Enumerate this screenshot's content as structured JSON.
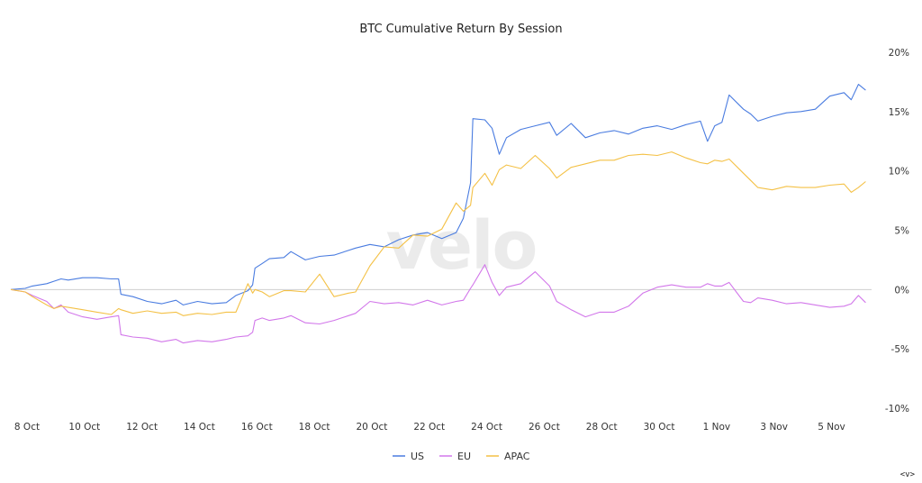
{
  "chart_data": {
    "type": "line",
    "title": "BTC Cumulative Return By Session",
    "watermark": "velo",
    "corner_mark": "<v>",
    "y_axis": {
      "position": "right",
      "ylim": [
        -10,
        20
      ],
      "ticks": [
        20,
        15,
        10,
        5,
        0,
        -5,
        -10
      ],
      "tick_labels": [
        "20%",
        "15%",
        "10%",
        "5%",
        "0%",
        "-5%",
        "-10%"
      ]
    },
    "x_axis": {
      "xlim": [
        "2023-10-08",
        "2023-11-06T23:00"
      ],
      "ticks": [
        "2023-10-08",
        "2023-10-10",
        "2023-10-12",
        "2023-10-14",
        "2023-10-16",
        "2023-10-18",
        "2023-10-20",
        "2023-10-22",
        "2023-10-24",
        "2023-10-26",
        "2023-10-28",
        "2023-10-30",
        "2023-11-01",
        "2023-11-03",
        "2023-11-05"
      ],
      "tick_labels": [
        "8 Oct",
        "10 Oct",
        "12 Oct",
        "14 Oct",
        "16 Oct",
        "18 Oct",
        "20 Oct",
        "22 Oct",
        "24 Oct",
        "26 Oct",
        "28 Oct",
        "30 Oct",
        "1 Nov",
        "3 Nov",
        "5 Nov"
      ]
    },
    "grid": false,
    "zero_line": true,
    "legend_position": "bottom-center",
    "series": [
      {
        "name": "US",
        "color": "#4a7ce0",
        "points": [
          [
            "2023-10-08T00:00",
            0.0
          ],
          [
            "2023-10-08T12:00",
            0.1
          ],
          [
            "2023-10-08T18:00",
            0.3
          ],
          [
            "2023-10-09T06:00",
            0.5
          ],
          [
            "2023-10-09T12:00",
            0.7
          ],
          [
            "2023-10-09T18:00",
            0.9
          ],
          [
            "2023-10-10T00:00",
            0.8
          ],
          [
            "2023-10-10T12:00",
            1.0
          ],
          [
            "2023-10-11T00:00",
            1.0
          ],
          [
            "2023-10-11T12:00",
            0.9
          ],
          [
            "2023-10-11T18:00",
            0.9
          ],
          [
            "2023-10-11T20:00",
            -0.4
          ],
          [
            "2023-10-12T06:00",
            -0.6
          ],
          [
            "2023-10-12T18:00",
            -1.0
          ],
          [
            "2023-10-13T06:00",
            -1.2
          ],
          [
            "2023-10-13T18:00",
            -0.9
          ],
          [
            "2023-10-14T00:00",
            -1.3
          ],
          [
            "2023-10-14T12:00",
            -1.0
          ],
          [
            "2023-10-15T00:00",
            -1.2
          ],
          [
            "2023-10-15T12:00",
            -1.1
          ],
          [
            "2023-10-15T20:00",
            -0.5
          ],
          [
            "2023-10-16T06:00",
            -0.1
          ],
          [
            "2023-10-16T10:00",
            0.4
          ],
          [
            "2023-10-16T12:00",
            1.8
          ],
          [
            "2023-10-16T18:00",
            2.2
          ],
          [
            "2023-10-17T00:00",
            2.6
          ],
          [
            "2023-10-17T12:00",
            2.7
          ],
          [
            "2023-10-17T18:00",
            3.2
          ],
          [
            "2023-10-18T06:00",
            2.5
          ],
          [
            "2023-10-18T18:00",
            2.8
          ],
          [
            "2023-10-19T06:00",
            2.9
          ],
          [
            "2023-10-19T18:00",
            3.3
          ],
          [
            "2023-10-20T00:00",
            3.5
          ],
          [
            "2023-10-20T12:00",
            3.8
          ],
          [
            "2023-10-21T00:00",
            3.6
          ],
          [
            "2023-10-21T12:00",
            4.2
          ],
          [
            "2023-10-22T00:00",
            4.6
          ],
          [
            "2023-10-22T12:00",
            4.8
          ],
          [
            "2023-10-23T00:00",
            4.3
          ],
          [
            "2023-10-23T12:00",
            4.8
          ],
          [
            "2023-10-23T18:00",
            6.0
          ],
          [
            "2023-10-24T00:00",
            9.0
          ],
          [
            "2023-10-24T02:00",
            14.4
          ],
          [
            "2023-10-24T12:00",
            14.3
          ],
          [
            "2023-10-24T18:00",
            13.6
          ],
          [
            "2023-10-25T00:00",
            11.4
          ],
          [
            "2023-10-25T06:00",
            12.8
          ],
          [
            "2023-10-25T18:00",
            13.5
          ],
          [
            "2023-10-26T06:00",
            13.8
          ],
          [
            "2023-10-26T18:00",
            14.1
          ],
          [
            "2023-10-27T00:00",
            13.0
          ],
          [
            "2023-10-27T12:00",
            14.0
          ],
          [
            "2023-10-28T00:00",
            12.8
          ],
          [
            "2023-10-28T12:00",
            13.2
          ],
          [
            "2023-10-29T00:00",
            13.4
          ],
          [
            "2023-10-29T12:00",
            13.1
          ],
          [
            "2023-10-30T00:00",
            13.6
          ],
          [
            "2023-10-30T12:00",
            13.8
          ],
          [
            "2023-10-31T00:00",
            13.5
          ],
          [
            "2023-10-31T12:00",
            13.9
          ],
          [
            "2023-11-01T00:00",
            14.2
          ],
          [
            "2023-11-01T06:00",
            12.5
          ],
          [
            "2023-11-01T12:00",
            13.8
          ],
          [
            "2023-11-01T18:00",
            14.1
          ],
          [
            "2023-11-02T00:00",
            16.4
          ],
          [
            "2023-11-02T12:00",
            15.2
          ],
          [
            "2023-11-02T18:00",
            14.8
          ],
          [
            "2023-11-03T00:00",
            14.2
          ],
          [
            "2023-11-03T12:00",
            14.6
          ],
          [
            "2023-11-04T00:00",
            14.9
          ],
          [
            "2023-11-04T12:00",
            15.0
          ],
          [
            "2023-11-05T00:00",
            15.2
          ],
          [
            "2023-11-05T12:00",
            16.3
          ],
          [
            "2023-11-06T00:00",
            16.6
          ],
          [
            "2023-11-06T06:00",
            16.0
          ],
          [
            "2023-11-06T12:00",
            17.3
          ],
          [
            "2023-11-06T18:00",
            16.8
          ]
        ]
      },
      {
        "name": "EU",
        "color": "#d277ea",
        "points": [
          [
            "2023-10-08T00:00",
            0.0
          ],
          [
            "2023-10-08T12:00",
            -0.2
          ],
          [
            "2023-10-08T18:00",
            -0.5
          ],
          [
            "2023-10-09T06:00",
            -1.0
          ],
          [
            "2023-10-09T12:00",
            -1.6
          ],
          [
            "2023-10-09T18:00",
            -1.3
          ],
          [
            "2023-10-10T00:00",
            -1.9
          ],
          [
            "2023-10-10T12:00",
            -2.3
          ],
          [
            "2023-10-11T00:00",
            -2.5
          ],
          [
            "2023-10-11T12:00",
            -2.3
          ],
          [
            "2023-10-11T18:00",
            -2.2
          ],
          [
            "2023-10-11T20:00",
            -3.8
          ],
          [
            "2023-10-12T06:00",
            -4.0
          ],
          [
            "2023-10-12T18:00",
            -4.1
          ],
          [
            "2023-10-13T06:00",
            -4.4
          ],
          [
            "2023-10-13T18:00",
            -4.2
          ],
          [
            "2023-10-14T00:00",
            -4.5
          ],
          [
            "2023-10-14T12:00",
            -4.3
          ],
          [
            "2023-10-15T00:00",
            -4.4
          ],
          [
            "2023-10-15T12:00",
            -4.2
          ],
          [
            "2023-10-15T20:00",
            -4.0
          ],
          [
            "2023-10-16T06:00",
            -3.9
          ],
          [
            "2023-10-16T10:00",
            -3.6
          ],
          [
            "2023-10-16T12:00",
            -2.6
          ],
          [
            "2023-10-16T18:00",
            -2.4
          ],
          [
            "2023-10-17T00:00",
            -2.6
          ],
          [
            "2023-10-17T12:00",
            -2.4
          ],
          [
            "2023-10-17T18:00",
            -2.2
          ],
          [
            "2023-10-18T06:00",
            -2.8
          ],
          [
            "2023-10-18T18:00",
            -2.9
          ],
          [
            "2023-10-19T06:00",
            -2.6
          ],
          [
            "2023-10-19T18:00",
            -2.2
          ],
          [
            "2023-10-20T00:00",
            -2.0
          ],
          [
            "2023-10-20T12:00",
            -1.0
          ],
          [
            "2023-10-21T00:00",
            -1.2
          ],
          [
            "2023-10-21T12:00",
            -1.1
          ],
          [
            "2023-10-22T00:00",
            -1.3
          ],
          [
            "2023-10-22T12:00",
            -0.9
          ],
          [
            "2023-10-23T00:00",
            -1.3
          ],
          [
            "2023-10-23T12:00",
            -1.0
          ],
          [
            "2023-10-23T18:00",
            -0.9
          ],
          [
            "2023-10-24T00:00",
            0.1
          ],
          [
            "2023-10-24T02:00",
            0.4
          ],
          [
            "2023-10-24T12:00",
            2.1
          ],
          [
            "2023-10-24T18:00",
            0.6
          ],
          [
            "2023-10-25T00:00",
            -0.5
          ],
          [
            "2023-10-25T06:00",
            0.2
          ],
          [
            "2023-10-25T18:00",
            0.5
          ],
          [
            "2023-10-26T06:00",
            1.5
          ],
          [
            "2023-10-26T18:00",
            0.3
          ],
          [
            "2023-10-27T00:00",
            -1.0
          ],
          [
            "2023-10-27T12:00",
            -1.7
          ],
          [
            "2023-10-28T00:00",
            -2.3
          ],
          [
            "2023-10-28T12:00",
            -1.9
          ],
          [
            "2023-10-29T00:00",
            -1.9
          ],
          [
            "2023-10-29T12:00",
            -1.4
          ],
          [
            "2023-10-30T00:00",
            -0.3
          ],
          [
            "2023-10-30T12:00",
            0.2
          ],
          [
            "2023-10-31T00:00",
            0.4
          ],
          [
            "2023-10-31T12:00",
            0.2
          ],
          [
            "2023-11-01T00:00",
            0.2
          ],
          [
            "2023-11-01T06:00",
            0.5
          ],
          [
            "2023-11-01T12:00",
            0.3
          ],
          [
            "2023-11-01T18:00",
            0.3
          ],
          [
            "2023-11-02T00:00",
            0.6
          ],
          [
            "2023-11-02T12:00",
            -1.0
          ],
          [
            "2023-11-02T18:00",
            -1.1
          ],
          [
            "2023-11-03T00:00",
            -0.7
          ],
          [
            "2023-11-03T12:00",
            -0.9
          ],
          [
            "2023-11-04T00:00",
            -1.2
          ],
          [
            "2023-11-04T12:00",
            -1.1
          ],
          [
            "2023-11-05T00:00",
            -1.3
          ],
          [
            "2023-11-05T12:00",
            -1.5
          ],
          [
            "2023-11-06T00:00",
            -1.4
          ],
          [
            "2023-11-06T06:00",
            -1.2
          ],
          [
            "2023-11-06T12:00",
            -0.5
          ],
          [
            "2023-11-06T18:00",
            -1.1
          ]
        ]
      },
      {
        "name": "APAC",
        "color": "#f4c146",
        "points": [
          [
            "2023-10-08T00:00",
            0.0
          ],
          [
            "2023-10-08T12:00",
            -0.2
          ],
          [
            "2023-10-08T18:00",
            -0.6
          ],
          [
            "2023-10-09T06:00",
            -1.3
          ],
          [
            "2023-10-09T12:00",
            -1.6
          ],
          [
            "2023-10-09T18:00",
            -1.4
          ],
          [
            "2023-10-10T00:00",
            -1.5
          ],
          [
            "2023-10-10T12:00",
            -1.7
          ],
          [
            "2023-10-11T00:00",
            -1.9
          ],
          [
            "2023-10-11T12:00",
            -2.1
          ],
          [
            "2023-10-11T18:00",
            -1.6
          ],
          [
            "2023-10-11T20:00",
            -1.7
          ],
          [
            "2023-10-12T06:00",
            -2.0
          ],
          [
            "2023-10-12T18:00",
            -1.8
          ],
          [
            "2023-10-13T06:00",
            -2.0
          ],
          [
            "2023-10-13T18:00",
            -1.9
          ],
          [
            "2023-10-14T00:00",
            -2.2
          ],
          [
            "2023-10-14T12:00",
            -2.0
          ],
          [
            "2023-10-15T00:00",
            -2.1
          ],
          [
            "2023-10-15T12:00",
            -1.9
          ],
          [
            "2023-10-15T20:00",
            -1.9
          ],
          [
            "2023-10-16T06:00",
            0.5
          ],
          [
            "2023-10-16T10:00",
            -0.3
          ],
          [
            "2023-10-16T12:00",
            0.0
          ],
          [
            "2023-10-16T18:00",
            -0.2
          ],
          [
            "2023-10-17T00:00",
            -0.6
          ],
          [
            "2023-10-17T12:00",
            -0.1
          ],
          [
            "2023-10-17T18:00",
            -0.1
          ],
          [
            "2023-10-18T06:00",
            -0.2
          ],
          [
            "2023-10-18T18:00",
            1.3
          ],
          [
            "2023-10-19T06:00",
            -0.6
          ],
          [
            "2023-10-19T18:00",
            -0.3
          ],
          [
            "2023-10-20T00:00",
            -0.2
          ],
          [
            "2023-10-20T12:00",
            2.0
          ],
          [
            "2023-10-21T00:00",
            3.6
          ],
          [
            "2023-10-21T12:00",
            3.5
          ],
          [
            "2023-10-22T00:00",
            4.6
          ],
          [
            "2023-10-22T12:00",
            4.5
          ],
          [
            "2023-10-23T00:00",
            5.1
          ],
          [
            "2023-10-23T12:00",
            7.3
          ],
          [
            "2023-10-23T18:00",
            6.6
          ],
          [
            "2023-10-24T00:00",
            7.1
          ],
          [
            "2023-10-24T02:00",
            8.6
          ],
          [
            "2023-10-24T12:00",
            9.8
          ],
          [
            "2023-10-24T18:00",
            8.8
          ],
          [
            "2023-10-25T00:00",
            10.1
          ],
          [
            "2023-10-25T06:00",
            10.5
          ],
          [
            "2023-10-25T18:00",
            10.2
          ],
          [
            "2023-10-26T06:00",
            11.3
          ],
          [
            "2023-10-26T18:00",
            10.2
          ],
          [
            "2023-10-27T00:00",
            9.4
          ],
          [
            "2023-10-27T12:00",
            10.3
          ],
          [
            "2023-10-28T00:00",
            10.6
          ],
          [
            "2023-10-28T12:00",
            10.9
          ],
          [
            "2023-10-29T00:00",
            10.9
          ],
          [
            "2023-10-29T12:00",
            11.3
          ],
          [
            "2023-10-30T00:00",
            11.4
          ],
          [
            "2023-10-30T12:00",
            11.3
          ],
          [
            "2023-10-31T00:00",
            11.6
          ],
          [
            "2023-10-31T12:00",
            11.1
          ],
          [
            "2023-11-01T00:00",
            10.7
          ],
          [
            "2023-11-01T06:00",
            10.6
          ],
          [
            "2023-11-01T12:00",
            10.9
          ],
          [
            "2023-11-01T18:00",
            10.8
          ],
          [
            "2023-11-02T00:00",
            11.0
          ],
          [
            "2023-11-02T12:00",
            9.8
          ],
          [
            "2023-11-02T18:00",
            9.2
          ],
          [
            "2023-11-03T00:00",
            8.6
          ],
          [
            "2023-11-03T12:00",
            8.4
          ],
          [
            "2023-11-04T00:00",
            8.7
          ],
          [
            "2023-11-04T12:00",
            8.6
          ],
          [
            "2023-11-05T00:00",
            8.6
          ],
          [
            "2023-11-05T12:00",
            8.8
          ],
          [
            "2023-11-06T00:00",
            8.9
          ],
          [
            "2023-11-06T06:00",
            8.2
          ],
          [
            "2023-11-06T12:00",
            8.6
          ],
          [
            "2023-11-06T18:00",
            9.1
          ]
        ]
      }
    ]
  }
}
